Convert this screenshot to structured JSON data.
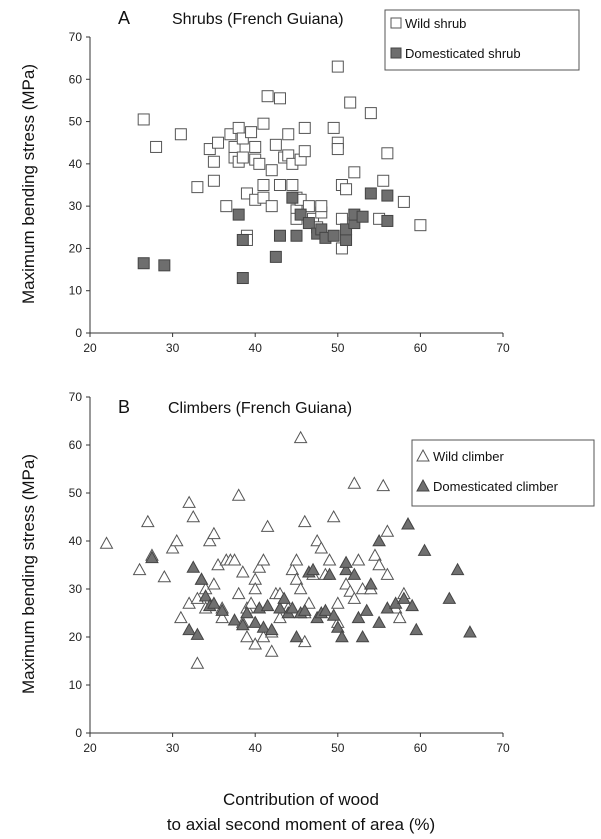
{
  "chart_data": [
    {
      "type": "scatter",
      "panel_label": "A",
      "title": "Shrubs  (French Guiana)",
      "ylabel": "Maximum bending stress (MPa)",
      "xlabel": "",
      "xlim": [
        20,
        70
      ],
      "ylim": [
        0,
        70
      ],
      "x_ticks": [
        20,
        30,
        40,
        50,
        60,
        70
      ],
      "y_ticks": [
        0,
        10,
        20,
        30,
        40,
        50,
        60,
        70
      ],
      "grid": false,
      "legend_position": "top-right",
      "series": [
        {
          "name": "Wild shrub",
          "marker": "square",
          "fill": "#ffffff",
          "stroke": "#555555",
          "points": [
            [
              26.5,
              50.5
            ],
            [
              28,
              44
            ],
            [
              31,
              47
            ],
            [
              33,
              34.5
            ],
            [
              34.5,
              43.5
            ],
            [
              35,
              40.5
            ],
            [
              35,
              36
            ],
            [
              35.5,
              45
            ],
            [
              36.5,
              30
            ],
            [
              37,
              47
            ],
            [
              37.5,
              41.5
            ],
            [
              37.5,
              44
            ],
            [
              38,
              48.5
            ],
            [
              38,
              40.5
            ],
            [
              38.5,
              46
            ],
            [
              38.5,
              41.5
            ],
            [
              39,
              33
            ],
            [
              39,
              23
            ],
            [
              39,
              22
            ],
            [
              39.5,
              47.5
            ],
            [
              40,
              44
            ],
            [
              40,
              41
            ],
            [
              40,
              31.5
            ],
            [
              40.5,
              40
            ],
            [
              41,
              49.5
            ],
            [
              41,
              35
            ],
            [
              41,
              32
            ],
            [
              41.5,
              56
            ],
            [
              42,
              38.5
            ],
            [
              42,
              30
            ],
            [
              42.5,
              44.5
            ],
            [
              43,
              35
            ],
            [
              43,
              55.5
            ],
            [
              43.5,
              41.5
            ],
            [
              44,
              42
            ],
            [
              44,
              47
            ],
            [
              44.5,
              40
            ],
            [
              44.5,
              35
            ],
            [
              45,
              32
            ],
            [
              45,
              29
            ],
            [
              45,
              27
            ],
            [
              45.5,
              31.5
            ],
            [
              45.5,
              41
            ],
            [
              46,
              48.5
            ],
            [
              46,
              43
            ],
            [
              46.5,
              30
            ],
            [
              47,
              27
            ],
            [
              47.5,
              25
            ],
            [
              48,
              28.5
            ],
            [
              48,
              30
            ],
            [
              49.5,
              48.5
            ],
            [
              50,
              63
            ],
            [
              50,
              45
            ],
            [
              50,
              43.5
            ],
            [
              50.5,
              35
            ],
            [
              50.5,
              27
            ],
            [
              50.5,
              20
            ],
            [
              51,
              34
            ],
            [
              51.5,
              54.5
            ],
            [
              52,
              38
            ],
            [
              54,
              52
            ],
            [
              55,
              27
            ],
            [
              55.5,
              36
            ],
            [
              56,
              42.5
            ],
            [
              58,
              31
            ],
            [
              60,
              25.5
            ]
          ]
        },
        {
          "name": "Domesticated shrub",
          "marker": "square",
          "fill": "#6e6e6e",
          "stroke": "#444444",
          "points": [
            [
              26.5,
              16.5
            ],
            [
              29,
              16
            ],
            [
              38,
              28
            ],
            [
              38.5,
              22
            ],
            [
              38.5,
              13
            ],
            [
              42.5,
              18
            ],
            [
              43,
              23
            ],
            [
              44.5,
              32
            ],
            [
              45,
              23
            ],
            [
              45.5,
              28
            ],
            [
              46.5,
              26
            ],
            [
              47.5,
              23.5
            ],
            [
              48,
              24.5
            ],
            [
              48.5,
              22.5
            ],
            [
              49.5,
              23
            ],
            [
              51,
              22
            ],
            [
              51,
              24.5
            ],
            [
              52,
              26
            ],
            [
              52,
              28
            ],
            [
              53,
              27.5
            ],
            [
              54,
              33
            ],
            [
              56,
              32.5
            ],
            [
              56,
              26.5
            ]
          ]
        }
      ]
    },
    {
      "type": "scatter",
      "panel_label": "B",
      "title": "Climbers  (French Guiana)",
      "ylabel": "Maximum bending stress (MPa)",
      "xlabel": "Contribution of wood to axial second moment of area (%)",
      "xlim": [
        20,
        70
      ],
      "ylim": [
        0,
        70
      ],
      "x_ticks": [
        20,
        30,
        40,
        50,
        60,
        70
      ],
      "y_ticks": [
        0,
        10,
        20,
        30,
        40,
        50,
        60,
        70
      ],
      "grid": false,
      "legend_position": "top-right",
      "series": [
        {
          "name": "Wild climber",
          "marker": "triangle",
          "fill": "#ffffff",
          "stroke": "#555555",
          "points": [
            [
              22,
              39.5
            ],
            [
              26,
              34
            ],
            [
              27,
              44
            ],
            [
              27.5,
              37
            ],
            [
              29,
              32.5
            ],
            [
              30,
              38.5
            ],
            [
              30.5,
              40
            ],
            [
              31,
              24
            ],
            [
              32,
              27
            ],
            [
              32,
              48
            ],
            [
              32.5,
              45
            ],
            [
              33,
              14.5
            ],
            [
              33,
              28
            ],
            [
              33.5,
              32
            ],
            [
              34,
              26
            ],
            [
              34,
              30
            ],
            [
              34.5,
              40
            ],
            [
              35,
              41.5
            ],
            [
              35,
              31
            ],
            [
              35.5,
              35
            ],
            [
              36,
              26
            ],
            [
              36,
              24
            ],
            [
              36.5,
              36
            ],
            [
              37,
              36
            ],
            [
              37.5,
              36
            ],
            [
              38,
              29
            ],
            [
              38,
              49.5
            ],
            [
              38.5,
              33.5
            ],
            [
              38.5,
              23
            ],
            [
              39,
              20
            ],
            [
              39,
              26
            ],
            [
              39.5,
              27
            ],
            [
              40,
              32
            ],
            [
              40,
              30
            ],
            [
              40,
              18.5
            ],
            [
              40.5,
              34.5
            ],
            [
              41,
              20
            ],
            [
              41,
              36
            ],
            [
              41.5,
              43
            ],
            [
              42,
              21
            ],
            [
              42,
              17
            ],
            [
              42.5,
              29
            ],
            [
              43,
              29
            ],
            [
              43,
              24
            ],
            [
              44,
              26
            ],
            [
              44.5,
              34
            ],
            [
              45,
              32
            ],
            [
              45,
              36
            ],
            [
              45.5,
              61.5
            ],
            [
              45.5,
              30
            ],
            [
              46,
              44
            ],
            [
              46,
              25
            ],
            [
              46,
              19
            ],
            [
              46.5,
              27
            ],
            [
              47,
              33
            ],
            [
              47.5,
              40
            ],
            [
              48,
              38.5
            ],
            [
              48.5,
              33
            ],
            [
              49,
              36
            ],
            [
              49.5,
              45
            ],
            [
              50,
              27
            ],
            [
              50,
              23
            ],
            [
              51,
              31
            ],
            [
              51.5,
              29.5
            ],
            [
              52,
              28
            ],
            [
              52,
              52
            ],
            [
              52.5,
              36
            ],
            [
              53,
              30
            ],
            [
              54,
              30
            ],
            [
              54.5,
              37
            ],
            [
              55,
              35
            ],
            [
              55.5,
              51.5
            ],
            [
              56,
              33
            ],
            [
              56,
              42
            ],
            [
              57,
              26
            ],
            [
              58,
              29
            ],
            [
              58.5,
              43.5
            ],
            [
              57.5,
              24
            ]
          ]
        },
        {
          "name": "Domesticated climber",
          "marker": "triangle",
          "fill": "#707070",
          "stroke": "#444444",
          "points": [
            [
              27.5,
              36.5
            ],
            [
              32,
              21.5
            ],
            [
              32.5,
              34.5
            ],
            [
              33,
              20.5
            ],
            [
              33.5,
              32
            ],
            [
              34,
              28.5
            ],
            [
              34.5,
              26.5
            ],
            [
              35,
              27
            ],
            [
              36,
              25.5
            ],
            [
              37.5,
              23.5
            ],
            [
              38.5,
              22.5
            ],
            [
              39,
              25
            ],
            [
              40,
              23
            ],
            [
              40.5,
              26
            ],
            [
              41,
              22
            ],
            [
              41.5,
              26.5
            ],
            [
              42,
              21.5
            ],
            [
              43,
              26
            ],
            [
              43.5,
              28
            ],
            [
              44,
              25
            ],
            [
              44.5,
              26
            ],
            [
              45,
              20
            ],
            [
              45.5,
              25
            ],
            [
              46,
              25.5
            ],
            [
              46.5,
              33.5
            ],
            [
              47,
              34
            ],
            [
              47.5,
              24
            ],
            [
              48,
              25
            ],
            [
              48.5,
              25.5
            ],
            [
              49,
              33
            ],
            [
              49.5,
              24.5
            ],
            [
              50,
              22
            ],
            [
              50.5,
              20
            ],
            [
              51,
              34
            ],
            [
              51,
              35.5
            ],
            [
              52,
              33
            ],
            [
              52.5,
              24
            ],
            [
              53,
              20
            ],
            [
              53.5,
              25.5
            ],
            [
              54,
              31
            ],
            [
              55,
              40
            ],
            [
              55,
              23
            ],
            [
              56,
              26
            ],
            [
              57,
              27
            ],
            [
              58,
              28
            ],
            [
              58.5,
              43.5
            ],
            [
              59,
              26.5
            ],
            [
              59.5,
              21.5
            ],
            [
              60.5,
              38
            ],
            [
              63.5,
              28
            ],
            [
              64.5,
              34
            ],
            [
              66,
              21
            ]
          ]
        }
      ]
    }
  ],
  "figure": {
    "xlabel_line1": "Contribution of wood",
    "xlabel_line2": "to axial second moment of area (%)"
  }
}
